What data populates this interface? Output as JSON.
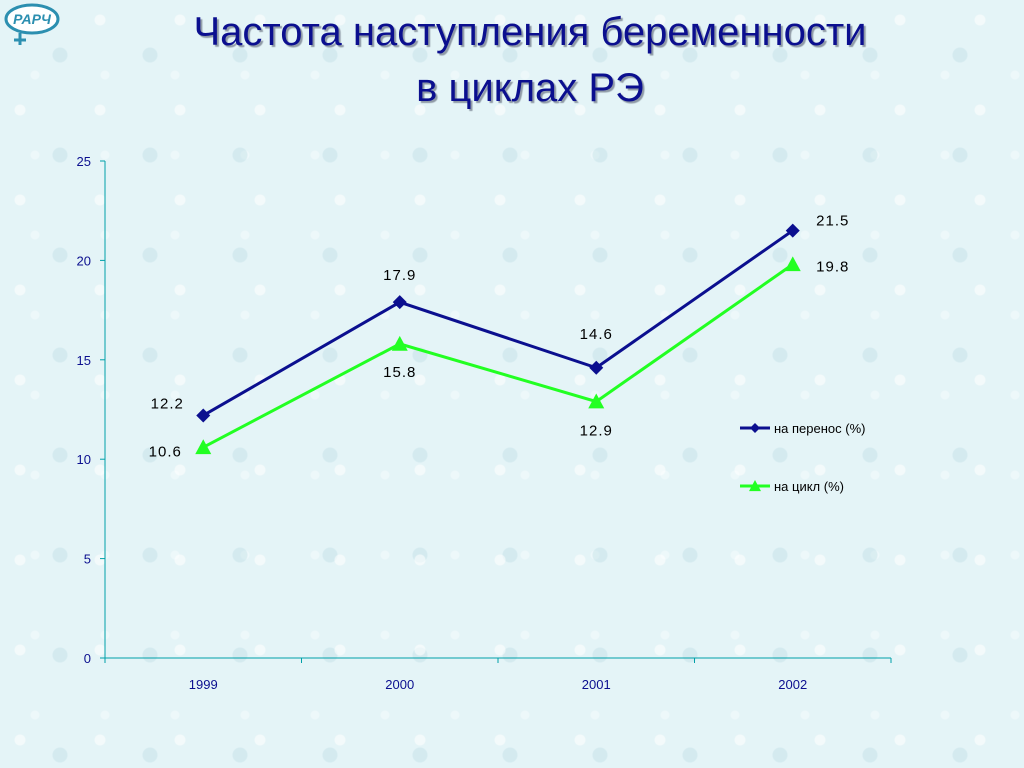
{
  "title": {
    "line1": "Частота наступления беременности",
    "line2": "в циклах РЭ"
  },
  "logo": {
    "text": "РАРЧ",
    "icon": "female-symbol-icon"
  },
  "colors": {
    "title": "#0b0f8f",
    "axis": "#00a0a8",
    "tick_text": "#0b0f8f",
    "series_transfer": "#0b0f8f",
    "series_cycle": "#22ff22",
    "background": "#e4f4f7"
  },
  "chart_data": {
    "type": "line",
    "categories": [
      "1999",
      "2000",
      "2001",
      "2002"
    ],
    "ylim": [
      0,
      25
    ],
    "yticks": [
      0,
      5,
      10,
      15,
      20,
      25
    ],
    "grid": false,
    "legend_position": "right",
    "series": [
      {
        "name": "на перенос (%)",
        "marker": "diamond",
        "color": "#0b0f8f",
        "values": [
          12.2,
          17.9,
          14.6,
          21.5
        ],
        "labels": [
          "12.2",
          "17.9",
          "14.6",
          "21.5"
        ]
      },
      {
        "name": "на цикл (%)",
        "marker": "triangle",
        "color": "#22ff22",
        "values": [
          10.6,
          15.8,
          12.9,
          19.8
        ],
        "labels": [
          "10.6",
          "15.8",
          "12.9",
          "19.8"
        ]
      }
    ]
  }
}
